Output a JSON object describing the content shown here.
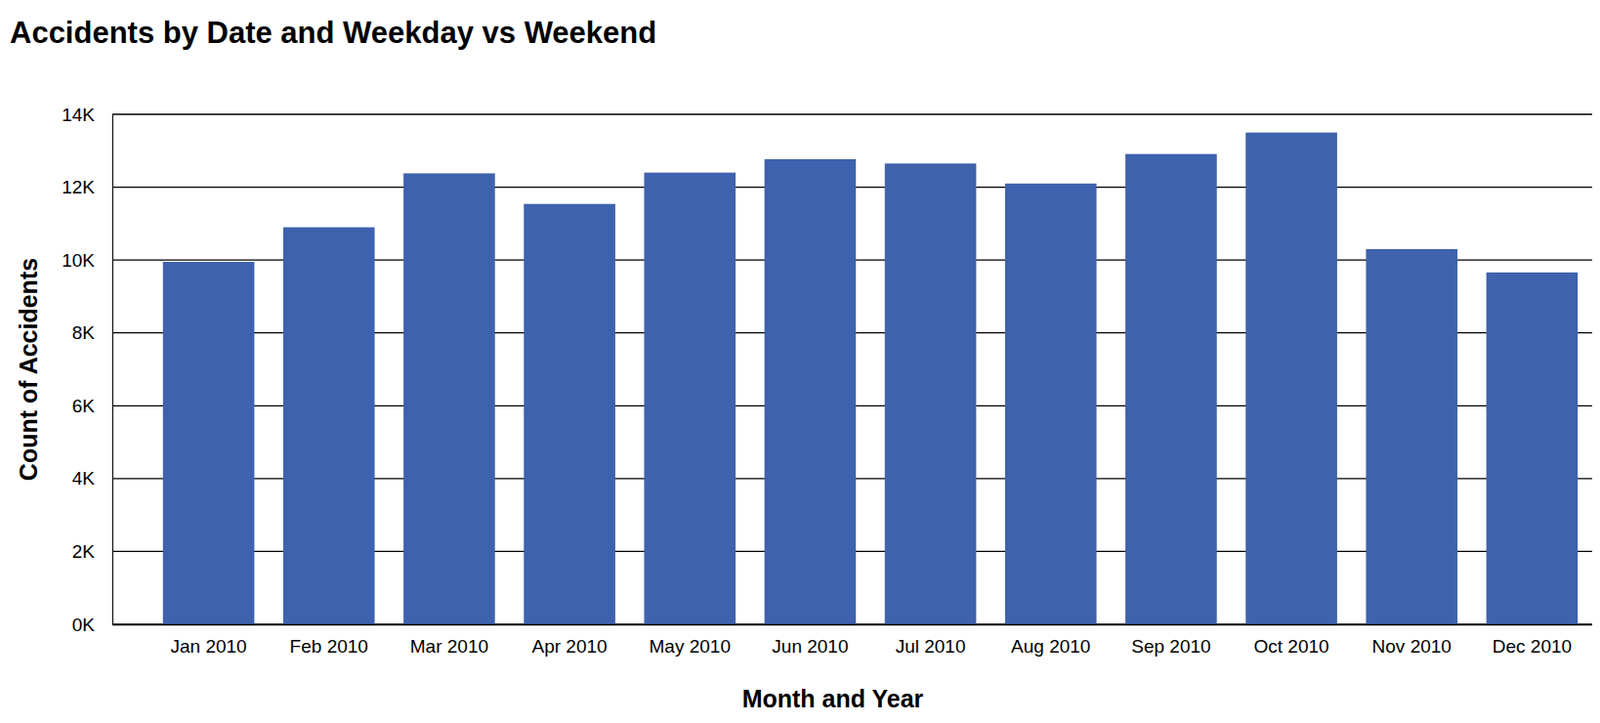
{
  "chart_data": {
    "type": "bar",
    "title": "Accidents by Date and Weekday vs Weekend",
    "x_label": "Month and Year",
    "y_label": "Count of Accidents",
    "categories": [
      "Jan 2010",
      "Feb 2010",
      "Mar 2010",
      "Apr 2010",
      "May 2010",
      "Jun 2010",
      "Jul 2010",
      "Aug 2010",
      "Sep 2010",
      "Oct 2010",
      "Nov 2010",
      "Dec 2010"
    ],
    "values": [
      9950,
      10900,
      12380,
      11540,
      12400,
      12770,
      12650,
      12100,
      12910,
      13500,
      10300,
      9660
    ],
    "color": "#3f62ae",
    "ylim": [
      0,
      14000
    ],
    "yticks": [
      {
        "value": 0,
        "label": "0K"
      },
      {
        "value": 2000,
        "label": "2K"
      },
      {
        "value": 4000,
        "label": "4K"
      },
      {
        "value": 6000,
        "label": "6K"
      },
      {
        "value": 8000,
        "label": "8K"
      },
      {
        "value": 10000,
        "label": "10K"
      },
      {
        "value": 12000,
        "label": "12K"
      },
      {
        "value": 14000,
        "label": "14K"
      }
    ],
    "grid": true
  }
}
